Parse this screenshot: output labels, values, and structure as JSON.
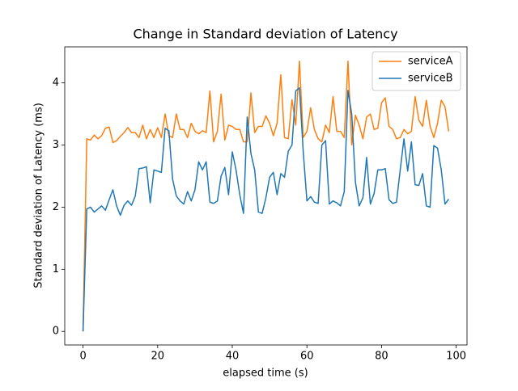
{
  "chart_data": {
    "type": "line",
    "title": "Change in Standard deviation of Latency",
    "xlabel": "elapsed time (s)",
    "ylabel": "Standard deviation of Latency (ms)",
    "x": [
      0,
      1,
      2,
      3,
      4,
      5,
      6,
      7,
      8,
      9,
      10,
      11,
      12,
      13,
      14,
      15,
      16,
      17,
      18,
      19,
      20,
      21,
      22,
      23,
      24,
      25,
      26,
      27,
      28,
      29,
      30,
      31,
      32,
      33,
      34,
      35,
      36,
      37,
      38,
      39,
      40,
      41,
      42,
      43,
      44,
      45,
      46,
      47,
      48,
      49,
      50,
      51,
      52,
      53,
      54,
      55,
      56,
      57,
      58,
      59,
      60,
      61,
      62,
      63,
      64,
      65,
      66,
      67,
      68,
      69,
      70,
      71,
      72,
      73,
      74,
      75,
      76,
      77,
      78,
      79,
      80,
      81,
      82,
      83,
      84,
      85,
      86,
      87,
      88,
      89,
      90,
      91,
      92,
      93,
      94,
      95,
      96,
      97,
      98
    ],
    "series": [
      {
        "name": "serviceA",
        "color": "#ff7f0e",
        "values": [
          0,
          3.1,
          3.08,
          3.16,
          3.1,
          3.15,
          3.27,
          3.29,
          3.04,
          3.07,
          3.14,
          3.2,
          3.28,
          3.2,
          3.2,
          3.12,
          3.32,
          3.1,
          3.25,
          3.12,
          3.28,
          3.12,
          3.5,
          3.15,
          3.12,
          3.5,
          3.25,
          3.25,
          3.12,
          3.35,
          3.22,
          3.18,
          3.23,
          3.2,
          3.87,
          3.05,
          3.22,
          3.82,
          3.08,
          3.32,
          3.3,
          3.25,
          3.25,
          3.05,
          3.05,
          3.84,
          3.2,
          3.3,
          3.3,
          3.47,
          3.35,
          3.15,
          3.35,
          4.13,
          3.12,
          3.1,
          3.73,
          3.32,
          4.35,
          3.12,
          3.22,
          3.6,
          3.25,
          3.1,
          3.05,
          3.32,
          3.2,
          3.78,
          3.22,
          3.22,
          3.12,
          4.35,
          3.0,
          3.48,
          3.32,
          3.1,
          3.45,
          3.5,
          3.25,
          3.27,
          3.68,
          3.76,
          3.3,
          3.25,
          3.1,
          3.12,
          3.25,
          3.18,
          3.22,
          3.78,
          3.4,
          3.3,
          3.72,
          3.3,
          3.12,
          3.35,
          3.72,
          3.62,
          3.22
        ]
      },
      {
        "name": "serviceB",
        "color": "#1f77b4",
        "values": [
          0,
          1.97,
          2.0,
          1.92,
          1.97,
          2.02,
          1.95,
          2.12,
          2.28,
          2.02,
          1.87,
          2.03,
          2.1,
          2.03,
          2.18,
          2.62,
          2.63,
          2.65,
          2.07,
          2.6,
          2.58,
          2.56,
          3.27,
          3.23,
          2.45,
          2.18,
          2.1,
          2.05,
          2.25,
          2.1,
          2.28,
          2.73,
          2.6,
          2.73,
          2.08,
          2.06,
          2.1,
          2.5,
          2.64,
          2.2,
          2.89,
          2.6,
          2.2,
          1.9,
          3.45,
          2.86,
          2.6,
          1.92,
          1.9,
          2.15,
          2.48,
          2.56,
          2.2,
          2.54,
          2.48,
          2.9,
          3.0,
          3.87,
          3.92,
          2.9,
          2.1,
          2.17,
          2.08,
          2.06,
          3.0,
          3.07,
          2.05,
          2.1,
          2.07,
          2.02,
          2.25,
          3.88,
          3.5,
          2.4,
          2.02,
          2.15,
          2.8,
          2.05,
          2.22,
          2.6,
          2.6,
          2.62,
          2.12,
          2.06,
          2.08,
          2.6,
          3.1,
          2.58,
          3.05,
          2.36,
          2.35,
          2.54,
          2.02,
          2.0,
          2.99,
          2.95,
          2.6,
          2.05,
          2.13
        ]
      }
    ],
    "xlim": [
      -4.9,
      102.9
    ],
    "ylim": [
      -0.218,
      4.58
    ],
    "xticks": [
      0,
      20,
      40,
      60,
      80,
      100
    ],
    "yticks": [
      0,
      1,
      2,
      3,
      4
    ],
    "legend": "upper right"
  }
}
